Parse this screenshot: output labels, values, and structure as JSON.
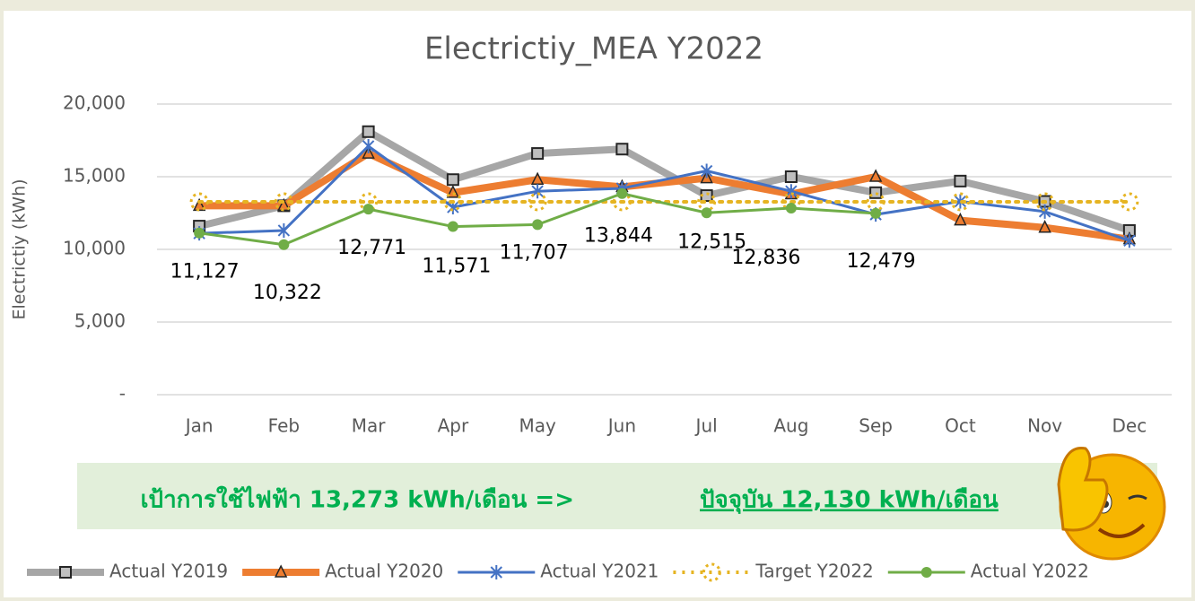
{
  "chart_data": {
    "type": "line",
    "title": "Electrictiy_MEA Y2022",
    "y_label": "Electrictiy (kWh)",
    "categories": [
      "Jan",
      "Feb",
      "Mar",
      "Apr",
      "May",
      "Jun",
      "Jul",
      "Aug",
      "Sep",
      "Oct",
      "Nov",
      "Dec"
    ],
    "ylim": [
      0,
      20000
    ],
    "yticks": [
      {
        "value": 0,
        "label": "-"
      },
      {
        "value": 5000,
        "label": "5,000"
      },
      {
        "value": 10000,
        "label": "10,000"
      },
      {
        "value": 15000,
        "label": "15,000"
      },
      {
        "value": 20000,
        "label": "20,000"
      }
    ],
    "grid": true,
    "legend": "bottom",
    "series": [
      {
        "name": "Actual Y2019",
        "color": "#a6a6a6",
        "marker": "square",
        "values": [
          11600,
          13000,
          18100,
          14800,
          16600,
          16900,
          13700,
          15000,
          13900,
          14700,
          13300,
          11300
        ]
      },
      {
        "name": "Actual Y2020",
        "color": "#ed7d31",
        "marker": "triangle",
        "values": [
          13000,
          13000,
          16600,
          13900,
          14800,
          14300,
          14900,
          13800,
          15000,
          12000,
          11500,
          10700
        ]
      },
      {
        "name": "Actual Y2021",
        "color": "#4472c4",
        "marker": "star",
        "values": [
          11100,
          11300,
          17100,
          12900,
          14000,
          14200,
          15400,
          14000,
          12400,
          13300,
          12600,
          10600
        ]
      },
      {
        "name": "Target Y2022",
        "color": "#e6b422",
        "marker": "dotted",
        "values": [
          13273,
          13273,
          13273,
          13273,
          13273,
          13273,
          13273,
          13273,
          13273,
          13273,
          13273,
          13273
        ]
      },
      {
        "name": "Actual Y2022",
        "color": "#70ad47",
        "marker": "circle",
        "values": [
          11127,
          10322,
          12771,
          11571,
          11707,
          13844,
          12515,
          12836,
          12479,
          null,
          null,
          null
        ],
        "value_labels": [
          "11,127",
          "10,322",
          "12,771",
          "11,571",
          "11,707",
          "13,844",
          "12,515",
          "12,836",
          "12,479",
          null,
          null,
          null
        ]
      }
    ],
    "banner": {
      "target_text": "เป้าการใช้ไฟฟ้า 13,273 kWh/เดือน =>",
      "current_text": "ปัจจุบัน 12,130 kWh/เดือน"
    }
  }
}
